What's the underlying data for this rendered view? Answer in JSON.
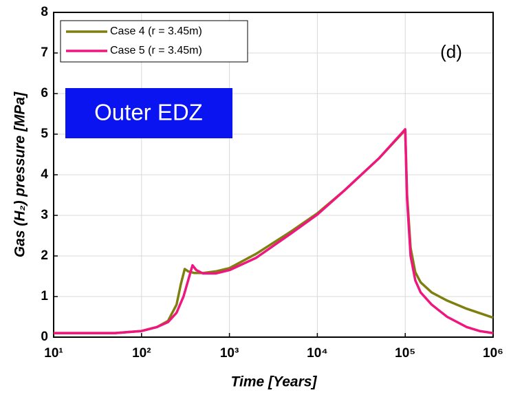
{
  "chart_data": {
    "type": "line",
    "xscale": "log",
    "grid": true,
    "legend": "upper-left",
    "annotation": "(d)",
    "label_box": "Outer EDZ",
    "label_box_color": "#0a14f0",
    "xlabel": "Time [Years]",
    "ylabel": "Gas (H₂) pressure [MPa]",
    "xlim": [
      10,
      1000000
    ],
    "ylim": [
      0,
      8
    ],
    "xticks": [
      {
        "value": 10,
        "label": "10¹"
      },
      {
        "value": 100,
        "label": "10²"
      },
      {
        "value": 1000,
        "label": "10³"
      },
      {
        "value": 10000,
        "label": "10⁴"
      },
      {
        "value": 100000,
        "label": "10⁵"
      },
      {
        "value": 1000000,
        "label": "10⁶"
      }
    ],
    "yticks": [
      0,
      1,
      2,
      3,
      4,
      5,
      6,
      7,
      8
    ],
    "series": [
      {
        "name": "Case 4 (r = 3.45m)",
        "color": "#7f7f0f",
        "x": [
          10,
          30,
          50,
          100,
          150,
          200,
          250,
          280,
          310,
          340,
          400,
          500,
          700,
          1000,
          2000,
          5000,
          10000,
          20000,
          50000,
          100000,
          105000,
          115000,
          130000,
          150000,
          200000,
          300000,
          500000,
          1000000
        ],
        "values": [
          0.1,
          0.1,
          0.1,
          0.15,
          0.25,
          0.4,
          0.8,
          1.3,
          1.68,
          1.62,
          1.58,
          1.58,
          1.62,
          1.7,
          2.05,
          2.6,
          3.05,
          3.6,
          4.4,
          5.1,
          3.5,
          2.2,
          1.6,
          1.35,
          1.1,
          0.9,
          0.7,
          0.48
        ]
      },
      {
        "name": "Case 5 (r = 3.45m)",
        "color": "#f0167f",
        "x": [
          10,
          30,
          50,
          100,
          150,
          200,
          250,
          300,
          350,
          380,
          420,
          500,
          700,
          1000,
          2000,
          5000,
          10000,
          20000,
          50000,
          100000,
          105000,
          115000,
          130000,
          150000,
          200000,
          300000,
          500000,
          700000,
          1000000
        ],
        "values": [
          0.1,
          0.1,
          0.1,
          0.15,
          0.25,
          0.37,
          0.6,
          1.0,
          1.5,
          1.77,
          1.65,
          1.57,
          1.57,
          1.65,
          1.95,
          2.55,
          3.02,
          3.6,
          4.4,
          5.12,
          3.4,
          2.0,
          1.4,
          1.1,
          0.8,
          0.5,
          0.25,
          0.15,
          0.1
        ]
      }
    ]
  }
}
